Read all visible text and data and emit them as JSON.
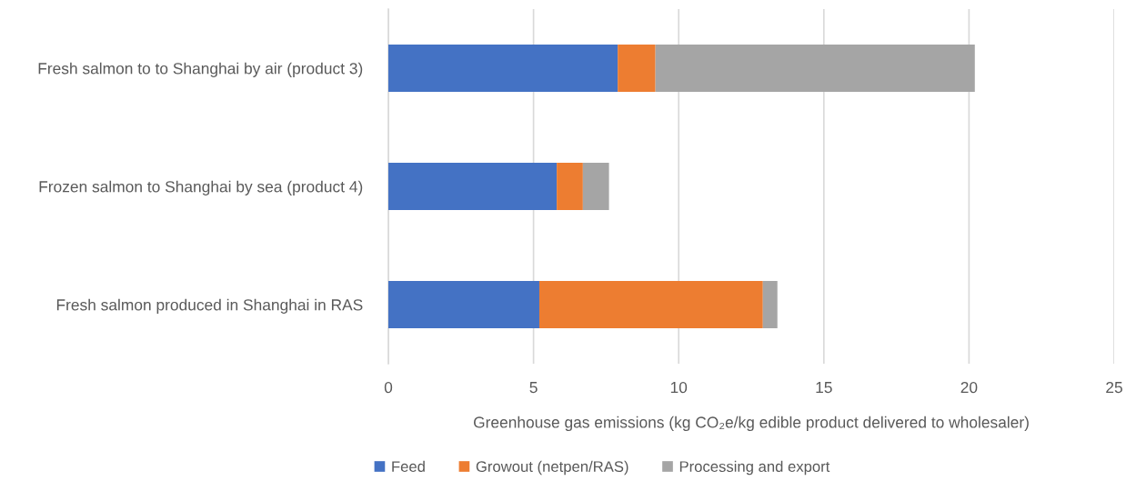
{
  "chart_data": {
    "type": "bar",
    "orientation": "horizontal",
    "stacked": true,
    "categories": [
      "Fresh salmon to to Shanghai by air (product 3)",
      "Frozen salmon to Shanghai by sea (product 4)",
      "Fresh salmon produced in Shanghai in RAS"
    ],
    "series": [
      {
        "name": "Feed",
        "color": "#4472c4",
        "values": [
          7.9,
          5.8,
          5.2
        ]
      },
      {
        "name": "Growout (netpen/RAS)",
        "color": "#ed7d31",
        "values": [
          1.3,
          0.9,
          7.7
        ]
      },
      {
        "name": "Processing and export",
        "color": "#a5a5a5",
        "values": [
          11.0,
          0.9,
          0.5
        ]
      }
    ],
    "xlabel": "Greenhouse gas emissions (kg CO₂e/kg edible product delivered to wholesaler)",
    "xlim": [
      0,
      25
    ],
    "xticks": [
      0,
      5,
      10,
      15,
      20,
      25
    ],
    "grid": "x",
    "legend": "bottom"
  }
}
